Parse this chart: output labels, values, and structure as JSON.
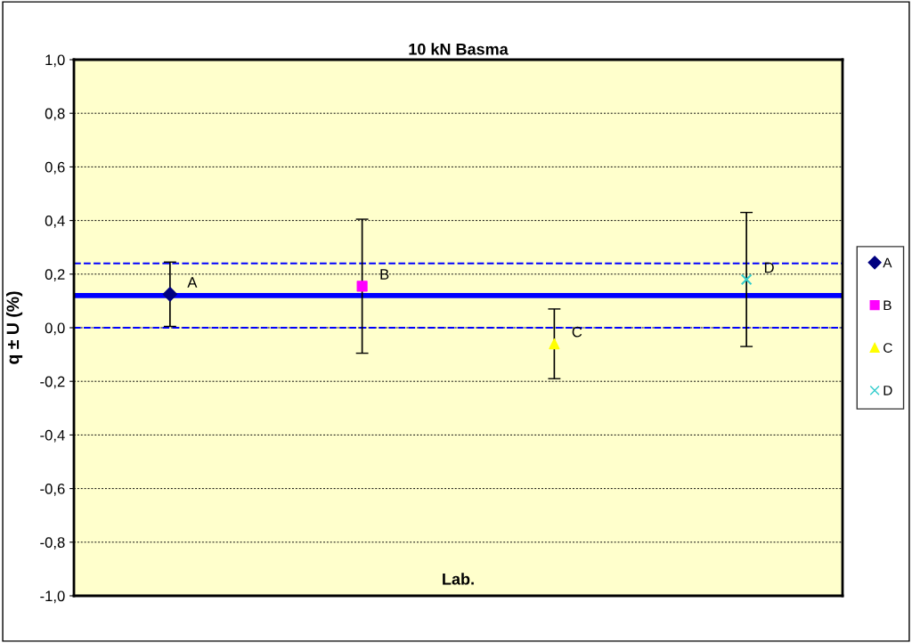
{
  "chart_data": {
    "type": "scatter",
    "title": "10 kN Basma",
    "xlabel": "Lab.",
    "ylabel": "q ± U (%)",
    "categories": [
      null,
      null,
      null,
      null
    ],
    "series": [
      {
        "name": "A",
        "color": "#000080",
        "marker": "diamond",
        "values": [
          0.125,
          null,
          null,
          null
        ],
        "errors": [
          0.12,
          null,
          null,
          null
        ]
      },
      {
        "name": "B",
        "color": "#ff00ff",
        "marker": "square",
        "values": [
          null,
          0.155,
          null,
          null
        ],
        "errors": [
          null,
          0.25,
          null,
          null
        ]
      },
      {
        "name": "C",
        "color": "#ffff00",
        "marker": "triangle",
        "values": [
          null,
          null,
          -0.06,
          null
        ],
        "errors": [
          null,
          null,
          0.13,
          null
        ]
      },
      {
        "name": "D",
        "color": "#33cccc",
        "marker": "cross",
        "values": [
          null,
          null,
          null,
          0.18
        ],
        "errors": [
          null,
          null,
          null,
          0.25
        ]
      }
    ],
    "ylim": [
      -1.0,
      1.0
    ],
    "yticks": [
      {
        "value": -1.0,
        "label": "-1,0"
      },
      {
        "value": -0.8,
        "label": "-0,8"
      },
      {
        "value": -0.6,
        "label": "-0,6"
      },
      {
        "value": -0.4,
        "label": "-0,4"
      },
      {
        "value": -0.2,
        "label": "-0,2"
      },
      {
        "value": 0.0,
        "label": "0,0"
      },
      {
        "value": 0.2,
        "label": "0,2"
      },
      {
        "value": 0.4,
        "label": "0,4"
      },
      {
        "value": 0.6,
        "label": "0,6"
      },
      {
        "value": 0.8,
        "label": "0,8"
      },
      {
        "value": 1.0,
        "label": "1,0"
      }
    ],
    "ref_lines": [
      {
        "axis": "y",
        "value": 0.12,
        "color": "#0000ff",
        "line_style": "solid"
      },
      {
        "axis": "y",
        "value": 0.24,
        "color": "#0000ff",
        "line_style": "dashed"
      },
      {
        "axis": "y",
        "value": 0.0,
        "color": "#0000ff",
        "line_style": "dashed"
      }
    ],
    "grid": "y",
    "legend": "right"
  }
}
